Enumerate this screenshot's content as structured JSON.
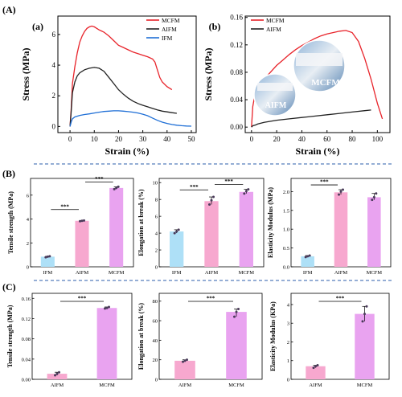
{
  "sections": {
    "A": "(A)",
    "B": "(B)",
    "C": "(C)"
  },
  "panels": {
    "a": "(a)",
    "b": "(b)"
  },
  "colors": {
    "red": "#e8232a",
    "black": "#222222",
    "blue": "#1f6fd6",
    "divider": "#2b5cab",
    "ifm_bar": "#aee0f7",
    "aifm_bar": "#f7a8cf",
    "mcfm_bar": "#e9a3f0",
    "dot": "#4a3a5a"
  },
  "photo": {
    "labels": [
      "MCFM",
      "AIFM"
    ]
  },
  "chart_data": [
    {
      "id": "a",
      "type": "line",
      "xlabel": "Strain (%)",
      "ylabel": "Stress (MPa)",
      "xlim": [
        -5,
        52
      ],
      "ylim": [
        -0.4,
        7.2
      ],
      "xticks": [
        0,
        10,
        20,
        30,
        40,
        50
      ],
      "yticks": [
        0,
        2,
        4,
        6
      ],
      "legend": "top-right",
      "grid": false,
      "series": [
        {
          "name": "MCFM",
          "color": "#e8232a",
          "points": [
            [
              0,
              0
            ],
            [
              0.5,
              1.2
            ],
            [
              1,
              2.8
            ],
            [
              2,
              3.9
            ],
            [
              3,
              4.8
            ],
            [
              4,
              5.5
            ],
            [
              5,
              5.9
            ],
            [
              6,
              6.2
            ],
            [
              7,
              6.4
            ],
            [
              8,
              6.5
            ],
            [
              9,
              6.55
            ],
            [
              10,
              6.5
            ],
            [
              11,
              6.4
            ],
            [
              12,
              6.3
            ],
            [
              14,
              6.15
            ],
            [
              16,
              5.9
            ],
            [
              18,
              5.6
            ],
            [
              20,
              5.3
            ],
            [
              22,
              5.15
            ],
            [
              24,
              5.0
            ],
            [
              26,
              4.85
            ],
            [
              28,
              4.75
            ],
            [
              30,
              4.65
            ],
            [
              32,
              4.55
            ],
            [
              34,
              4.4
            ],
            [
              35,
              4.2
            ],
            [
              36,
              3.7
            ],
            [
              37,
              3.2
            ],
            [
              38,
              2.9
            ],
            [
              40,
              2.6
            ],
            [
              42,
              2.4
            ]
          ]
        },
        {
          "name": "AIFM",
          "color": "#222222",
          "points": [
            [
              0,
              0
            ],
            [
              0.5,
              1.0
            ],
            [
              1,
              2.2
            ],
            [
              2,
              2.9
            ],
            [
              3,
              3.3
            ],
            [
              4,
              3.5
            ],
            [
              6,
              3.7
            ],
            [
              8,
              3.8
            ],
            [
              10,
              3.85
            ],
            [
              12,
              3.8
            ],
            [
              14,
              3.6
            ],
            [
              16,
              3.2
            ],
            [
              18,
              2.8
            ],
            [
              20,
              2.4
            ],
            [
              22,
              2.1
            ],
            [
              24,
              1.85
            ],
            [
              26,
              1.65
            ],
            [
              28,
              1.5
            ],
            [
              30,
              1.38
            ],
            [
              32,
              1.28
            ],
            [
              34,
              1.18
            ],
            [
              36,
              1.08
            ],
            [
              38,
              1.0
            ],
            [
              40,
              0.95
            ],
            [
              42,
              0.9
            ],
            [
              44,
              0.86
            ]
          ]
        },
        {
          "name": "IFM",
          "color": "#1f6fd6",
          "points": [
            [
              0,
              0
            ],
            [
              0.5,
              0.3
            ],
            [
              1,
              0.5
            ],
            [
              2,
              0.62
            ],
            [
              4,
              0.72
            ],
            [
              6,
              0.78
            ],
            [
              8,
              0.82
            ],
            [
              10,
              0.88
            ],
            [
              12,
              0.93
            ],
            [
              14,
              0.98
            ],
            [
              16,
              1.0
            ],
            [
              18,
              1.02
            ],
            [
              20,
              1.02
            ],
            [
              22,
              1.0
            ],
            [
              24,
              0.97
            ],
            [
              26,
              0.93
            ],
            [
              28,
              0.88
            ],
            [
              30,
              0.8
            ],
            [
              32,
              0.7
            ],
            [
              34,
              0.55
            ],
            [
              36,
              0.4
            ],
            [
              38,
              0.28
            ],
            [
              40,
              0.2
            ],
            [
              42,
              0.13
            ],
            [
              44,
              0.08
            ],
            [
              46,
              0.05
            ],
            [
              48,
              0.03
            ],
            [
              50,
              0.02
            ]
          ]
        }
      ]
    },
    {
      "id": "b",
      "type": "line",
      "xlabel": "Strain (%)",
      "ylabel": "Stress (MPa)",
      "xlim": [
        -5,
        110
      ],
      "ylim": [
        -0.008,
        0.162
      ],
      "xticks": [
        0,
        20,
        40,
        60,
        80,
        100
      ],
      "yticks": [
        0.0,
        0.04,
        0.08,
        0.12,
        0.16
      ],
      "ytick_labels": [
        "0.00",
        "0.04",
        "0.08",
        "0.12",
        "0.16"
      ],
      "legend": "top-left",
      "grid": false,
      "series": [
        {
          "name": "MCFM",
          "color": "#e8232a",
          "points": [
            [
              0,
              0
            ],
            [
              1,
              0.03
            ],
            [
              3,
              0.05
            ],
            [
              5,
              0.058
            ],
            [
              10,
              0.07
            ],
            [
              15,
              0.08
            ],
            [
              20,
              0.09
            ],
            [
              25,
              0.098
            ],
            [
              30,
              0.106
            ],
            [
              35,
              0.113
            ],
            [
              40,
              0.119
            ],
            [
              45,
              0.124
            ],
            [
              50,
              0.129
            ],
            [
              55,
              0.133
            ],
            [
              60,
              0.136
            ],
            [
              65,
              0.138
            ],
            [
              70,
              0.14
            ],
            [
              75,
              0.141
            ],
            [
              80,
              0.138
            ],
            [
              85,
              0.125
            ],
            [
              90,
              0.1
            ],
            [
              95,
              0.07
            ],
            [
              100,
              0.035
            ],
            [
              104,
              0.012
            ]
          ]
        },
        {
          "name": "AIFM",
          "color": "#222222",
          "points": [
            [
              0,
              0
            ],
            [
              1,
              0.002
            ],
            [
              3,
              0.003
            ],
            [
              5,
              0.0045
            ],
            [
              10,
              0.007
            ],
            [
              20,
              0.01
            ],
            [
              30,
              0.012
            ],
            [
              40,
              0.014
            ],
            [
              50,
              0.016
            ],
            [
              60,
              0.018
            ],
            [
              70,
              0.02
            ],
            [
              80,
              0.022
            ],
            [
              90,
              0.024
            ],
            [
              95,
              0.025
            ]
          ]
        }
      ]
    },
    {
      "id": "B1",
      "type": "bar",
      "ylabel": "Tensile strength (MPa)",
      "categories": [
        "IFM",
        "AIFM",
        "MCFM"
      ],
      "values": [
        0.85,
        3.85,
        6.6
      ],
      "ylim": [
        0,
        7.4
      ],
      "yticks": [
        0,
        2,
        4,
        6
      ],
      "points": [
        [
          0.8,
          0.85,
          0.88
        ],
        [
          3.82,
          3.85,
          3.88
        ],
        [
          6.5,
          6.6,
          6.7
        ]
      ],
      "significance": [
        {
          "from": 0,
          "to": 1,
          "label": "***"
        },
        {
          "from": 1,
          "to": 2,
          "label": "***"
        }
      ]
    },
    {
      "id": "B2",
      "type": "bar",
      "ylabel": "Elongation at break (%)",
      "categories": [
        "IFM",
        "AIFM",
        "MCFM"
      ],
      "values": [
        4.2,
        7.8,
        8.9
      ],
      "ylim": [
        0,
        10.5
      ],
      "yticks": [
        0,
        2,
        4,
        6,
        8,
        10
      ],
      "points": [
        [
          4.0,
          4.2,
          4.4
        ],
        [
          7.4,
          7.9,
          8.3
        ],
        [
          8.7,
          9.0,
          9.2
        ]
      ],
      "significance": [
        {
          "from": 0,
          "to": 1,
          "label": "***"
        },
        {
          "from": 1,
          "to": 2,
          "label": "***"
        }
      ]
    },
    {
      "id": "B3",
      "type": "bar",
      "ylabel": "Elasticity Modulus (MPa)",
      "categories": [
        "IFM",
        "AIFM",
        "MCFM"
      ],
      "values": [
        0.28,
        1.98,
        1.85
      ],
      "ylim": [
        0,
        2.35
      ],
      "yticks": [
        0.0,
        0.5,
        1.0,
        1.5,
        2.0
      ],
      "ytick_labels": [
        "0.0",
        "0.5",
        "1.0",
        "1.5",
        "2.0"
      ],
      "points": [
        [
          0.26,
          0.28,
          0.3
        ],
        [
          1.92,
          2.0,
          2.05
        ],
        [
          1.78,
          1.85,
          1.95
        ]
      ],
      "significance": [
        {
          "from": 0,
          "to": 1,
          "label": "***"
        }
      ]
    },
    {
      "id": "C1",
      "type": "bar",
      "ylabel": "Tensile strength (MPa)",
      "categories": [
        "AIFM",
        "MCFM"
      ],
      "values": [
        0.011,
        0.141
      ],
      "ylim": [
        0,
        0.17
      ],
      "yticks": [
        0.0,
        0.04,
        0.08,
        0.12,
        0.16
      ],
      "ytick_labels": [
        "0.00",
        "0.04",
        "0.08",
        "0.12",
        "0.16"
      ],
      "points": [
        [
          0.008,
          0.011,
          0.014
        ],
        [
          0.14,
          0.141,
          0.143
        ]
      ],
      "significance": [
        {
          "from": 0,
          "to": 1,
          "label": "***"
        }
      ]
    },
    {
      "id": "C2",
      "type": "bar",
      "ylabel": "Elongation at break (%)",
      "categories": [
        "AIFM",
        "MCFM"
      ],
      "values": [
        19,
        69
      ],
      "ylim": [
        0,
        88
      ],
      "yticks": [
        0,
        20,
        40,
        60,
        80
      ],
      "points": [
        [
          18,
          19,
          20
        ],
        [
          64,
          69,
          72
        ]
      ],
      "significance": [
        {
          "from": 0,
          "to": 1,
          "label": "***"
        }
      ]
    },
    {
      "id": "C3",
      "type": "bar",
      "ylabel": "Elasticity Modulus (KPa)",
      "categories": [
        "AIFM",
        "MCFM"
      ],
      "values": [
        0.7,
        3.5
      ],
      "ylim": [
        0,
        4.6
      ],
      "yticks": [
        0,
        1,
        2,
        3,
        4
      ],
      "points": [
        [
          0.62,
          0.7,
          0.75
        ],
        [
          3.1,
          3.5,
          3.9
        ]
      ],
      "significance": [
        {
          "from": 0,
          "to": 1,
          "label": "***"
        }
      ]
    }
  ]
}
